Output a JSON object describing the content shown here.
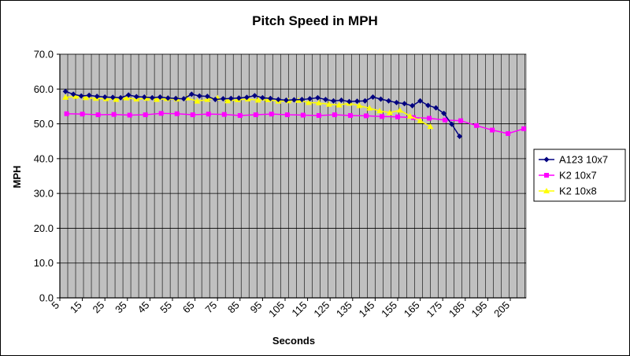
{
  "chart_data": {
    "type": "line",
    "title": "Pitch Speed in MPH",
    "xlabel": "Seconds",
    "ylabel": "MPH",
    "ylim": [
      0,
      70
    ],
    "yticks": [
      "0.0",
      "10.0",
      "20.0",
      "30.0",
      "40.0",
      "50.0",
      "60.0",
      "70.0"
    ],
    "xlim": [
      5,
      212
    ],
    "xticks": [
      "5",
      "15",
      "25",
      "35",
      "45",
      "55",
      "65",
      "75",
      "85",
      "95",
      "105",
      "115",
      "125",
      "135",
      "145",
      "155",
      "165",
      "175",
      "185",
      "195",
      "205"
    ],
    "grid": true,
    "legend": "right",
    "plot_background": "#c0c0c0",
    "series": [
      {
        "name": "A123 10x7",
        "color": "#000080",
        "marker": "diamond",
        "x": [
          7.5,
          11,
          14.5,
          18,
          21.5,
          25,
          28.5,
          32,
          35.5,
          39,
          42.5,
          46,
          49.5,
          53,
          56.5,
          60,
          63.5,
          67,
          70.5,
          74,
          77.5,
          81,
          84.5,
          88,
          91.5,
          95,
          98.5,
          102,
          105.5,
          109,
          112.5,
          116,
          119.5,
          123,
          126.5,
          130,
          133.5,
          137,
          140.5,
          144,
          147.5,
          151,
          154.5,
          158,
          161.5,
          165,
          168.5,
          172,
          175.5,
          179,
          182.5
        ],
        "values": [
          59.3,
          58.5,
          58.0,
          58.2,
          57.9,
          57.7,
          57.6,
          57.5,
          58.3,
          57.8,
          57.7,
          57.5,
          57.7,
          57.4,
          57.3,
          57.2,
          58.5,
          58.0,
          57.9,
          57.0,
          57.2,
          57.3,
          57.4,
          57.6,
          58.1,
          57.5,
          57.3,
          57.0,
          56.8,
          56.9,
          57.0,
          57.2,
          57.5,
          57.0,
          56.6,
          56.8,
          56.4,
          56.5,
          56.6,
          57.7,
          57.1,
          56.6,
          56.1,
          55.8,
          55.2,
          56.6,
          55.3,
          54.6,
          53.0,
          49.9,
          46.4
        ]
      },
      {
        "name": "K2 10x7",
        "color": "#ff00ff",
        "marker": "square",
        "x": [
          8,
          15,
          22,
          29,
          36,
          43,
          50,
          57,
          64,
          71,
          78,
          85,
          92,
          99,
          106,
          113,
          120,
          127,
          134,
          141,
          148,
          155,
          162,
          169,
          176,
          183,
          190,
          197,
          204,
          211
        ],
        "values": [
          52.9,
          52.8,
          52.6,
          52.7,
          52.5,
          52.6,
          53.0,
          52.9,
          52.6,
          52.8,
          52.7,
          52.4,
          52.6,
          52.8,
          52.6,
          52.5,
          52.4,
          52.6,
          52.4,
          52.3,
          52.1,
          52.0,
          51.8,
          51.6,
          51.1,
          50.9,
          49.5,
          48.2,
          47.2,
          48.6
        ]
      },
      {
        "name": "K2 10x8",
        "color": "#ffff00",
        "marker": "triangle",
        "x": [
          7.5,
          12,
          16.5,
          21,
          25.5,
          30,
          34.5,
          39,
          43.5,
          48,
          52.5,
          57,
          61.5,
          66,
          70.5,
          75,
          79.5,
          84,
          88.5,
          93,
          97.5,
          102,
          106.5,
          111,
          115.5,
          120,
          124.5,
          129,
          133.5,
          138,
          142.5,
          147,
          151.5,
          156,
          160.5,
          165,
          169.5
        ],
        "values": [
          57.6,
          57.9,
          57.5,
          57.3,
          57.2,
          57.0,
          57.4,
          57.1,
          57.3,
          57.0,
          57.2,
          57.1,
          57.4,
          56.5,
          57.0,
          57.4,
          56.6,
          56.9,
          57.1,
          56.8,
          56.9,
          56.5,
          56.6,
          56.7,
          56.1,
          56.0,
          55.6,
          55.4,
          55.9,
          55.2,
          54.5,
          53.7,
          53.2,
          53.9,
          52.2,
          50.9,
          49.2
        ]
      }
    ]
  }
}
